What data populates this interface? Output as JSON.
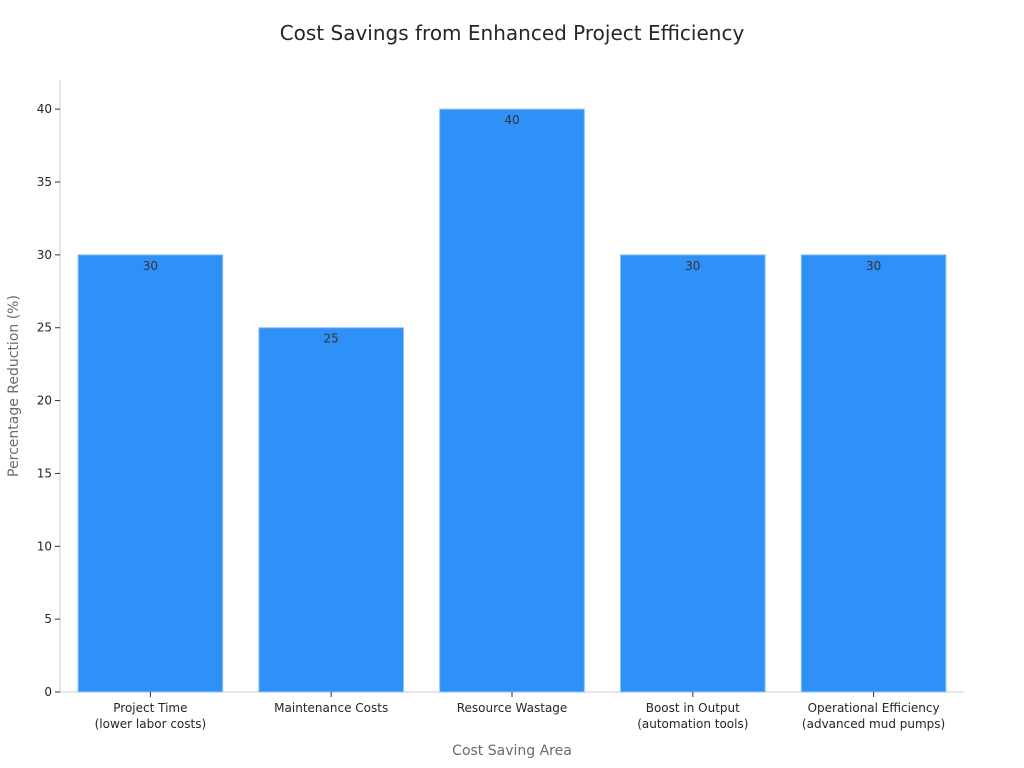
{
  "chart_data": {
    "type": "bar",
    "title": "Cost Savings from Enhanced Project Efficiency",
    "xlabel": "Cost Saving Area",
    "ylabel": "Percentage Reduction (%)",
    "categories": [
      [
        "Project Time",
        "(lower labor costs)"
      ],
      [
        "Maintenance Costs"
      ],
      [
        "Resource Wastage"
      ],
      [
        "Boost in Output",
        "(automation tools)"
      ],
      [
        "Operational Efficiency",
        "(advanced mud pumps)"
      ]
    ],
    "values": [
      30,
      25,
      40,
      30,
      30
    ],
    "data_labels": [
      "30",
      "25",
      "40",
      "30",
      "30"
    ],
    "ylim": [
      0,
      42
    ],
    "yticks": [
      "0",
      "5",
      "10",
      "15",
      "20",
      "25",
      "30",
      "35",
      "40"
    ],
    "ytick_values": [
      0,
      5,
      10,
      15,
      20,
      25,
      30,
      35,
      40
    ],
    "bar_color": "#2f91f7",
    "grid": false,
    "legend": "none"
  }
}
